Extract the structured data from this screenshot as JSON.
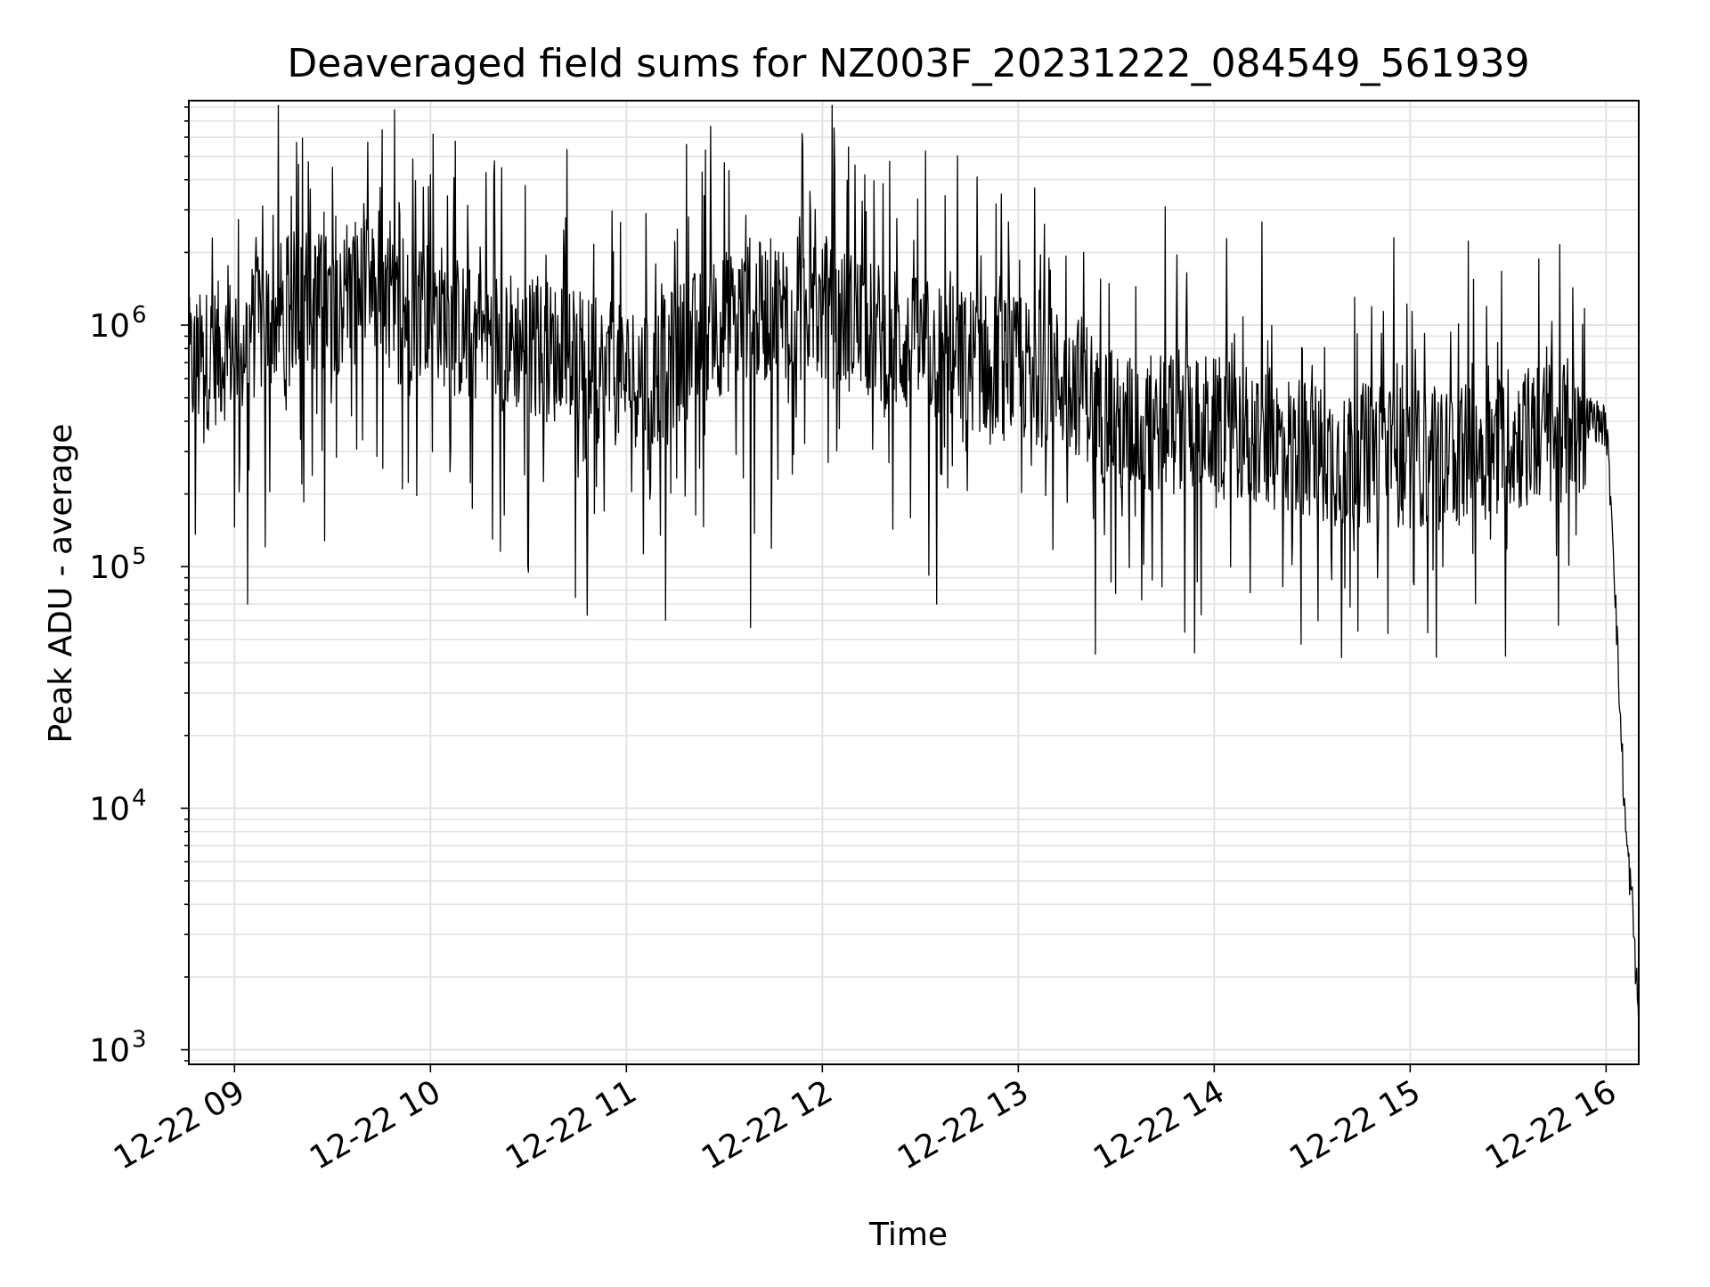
{
  "chart_data": {
    "type": "line",
    "title": "Deaveraged field sums for NZ003F_20231222_084549_561939",
    "xlabel": "Time",
    "ylabel": "Peak ADU - average",
    "yscale": "log",
    "ylim": [
      870,
      8500000
    ],
    "xlim": [
      "12-22 08:46",
      "12-22 16:10"
    ],
    "grid": true,
    "x_tick_labels": [
      "12-22 09",
      "12-22 10",
      "12-22 11",
      "12-22 12",
      "12-22 13",
      "12-22 14",
      "12-22 15",
      "12-22 16"
    ],
    "y_tick_labels": [
      {
        "base": "10",
        "exp": "3"
      },
      {
        "base": "10",
        "exp": "4"
      },
      {
        "base": "10",
        "exp": "5"
      },
      {
        "base": "10",
        "exp": "6"
      }
    ],
    "line_color": "#000000",
    "x": [
      "08:46",
      "09:00",
      "09:10",
      "09:20",
      "09:30",
      "09:40",
      "09:50",
      "10:00",
      "10:10",
      "10:20",
      "10:30",
      "10:40",
      "10:50",
      "11:00",
      "11:10",
      "11:20",
      "11:30",
      "11:40",
      "11:50",
      "12:00",
      "12:10",
      "12:20",
      "12:30",
      "12:40",
      "12:50",
      "13:00",
      "13:10",
      "13:20",
      "13:30",
      "13:40",
      "13:50",
      "14:00",
      "14:10",
      "14:20",
      "14:30",
      "14:40",
      "14:50",
      "15:00",
      "15:10",
      "15:20",
      "15:30",
      "15:40",
      "15:50",
      "15:55",
      "16:00",
      "16:02",
      "16:04",
      "16:06",
      "16:08",
      "16:10"
    ],
    "series": [
      {
        "values": [
          700000,
          900000,
          1100000,
          1400000,
          1300000,
          1500000,
          1200000,
          1300000,
          1000000,
          950000,
          900000,
          800000,
          700000,
          650000,
          700000,
          900000,
          1100000,
          1200000,
          1300000,
          1200000,
          1100000,
          950000,
          850000,
          800000,
          750000,
          700000,
          650000,
          600000,
          400000,
          420000,
          450000,
          400000,
          380000,
          350000,
          330000,
          300000,
          320000,
          300000,
          300000,
          320000,
          350000,
          380000,
          400000,
          420000,
          380000,
          150000,
          30000,
          8000,
          4000,
          1300
        ]
      }
    ],
    "envelope": {
      "max_spikes_at": [
        "09:30",
        "10:00",
        "11:30",
        "11:54",
        "12:10",
        "13:05",
        "13:20",
        "14:55"
      ],
      "max_spike_values": [
        4500000,
        4200000,
        4700000,
        5600000,
        4600000,
        3700000,
        2000000,
        2300000
      ],
      "min_dips_at": [
        "09:04",
        "10:30",
        "10:48",
        "11:12",
        "11:38",
        "12:35",
        "13:54",
        "14:39"
      ],
      "min_dip_values": [
        70000,
        95000,
        63000,
        60000,
        56000,
        70000,
        44000,
        42000
      ]
    }
  }
}
